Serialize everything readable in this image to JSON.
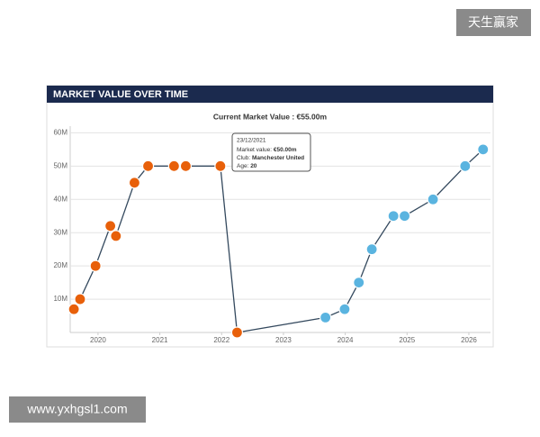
{
  "watermark_top": "天生赢家",
  "watermark_bottom": "www.yxhgsl1.com",
  "chart_data": {
    "type": "line",
    "header": "MARKET VALUE OVER TIME",
    "title": "Current Market Value : €55.00m",
    "x": [
      2019.61,
      2019.71,
      2019.96,
      2020.2,
      2020.29,
      2020.59,
      2020.81,
      2021.23,
      2021.42,
      2021.98,
      2022.25,
      2023.68,
      2023.99,
      2024.22,
      2024.43,
      2024.78,
      2024.96,
      2025.42,
      2025.94,
      2026.23
    ],
    "series": [
      {
        "color": "#34495e",
        "values": [
          7,
          10,
          20,
          32,
          29,
          45,
          50,
          50,
          50,
          50,
          0,
          4.5,
          7,
          15,
          25,
          35,
          35,
          40,
          50,
          55
        ],
        "marker_colors": [
          "#e8600a",
          "#e8600a",
          "#e8600a",
          "#e8600a",
          "#e8600a",
          "#e8600a",
          "#e8600a",
          "#e8600a",
          "#e8600a",
          "#e8600a",
          "#e8600a",
          "#5ab4e0",
          "#5ab4e0",
          "#5ab4e0",
          "#5ab4e0",
          "#5ab4e0",
          "#5ab4e0",
          "#5ab4e0",
          "#5ab4e0",
          "#5ab4e0"
        ]
      }
    ],
    "xlim": [
      2019.55,
      2026.35
    ],
    "xticks": [
      2020,
      2021,
      2022,
      2023,
      2024,
      2025,
      2026
    ],
    "ylim": [
      0,
      62
    ],
    "yticks": [
      {
        "value": 10,
        "label": "10M"
      },
      {
        "value": 20,
        "label": "20M"
      },
      {
        "value": 30,
        "label": "30M"
      },
      {
        "value": 40,
        "label": "40M"
      },
      {
        "value": 50,
        "label": "50M"
      },
      {
        "value": 60,
        "label": "60M"
      }
    ],
    "grid": true,
    "tooltip": {
      "date": "23/12/2021",
      "rows": [
        {
          "label": "Market value:",
          "value": "€50.00m"
        },
        {
          "label": "Club:",
          "value": "Manchester United"
        },
        {
          "label": "Age:",
          "value": "20"
        }
      ]
    }
  }
}
